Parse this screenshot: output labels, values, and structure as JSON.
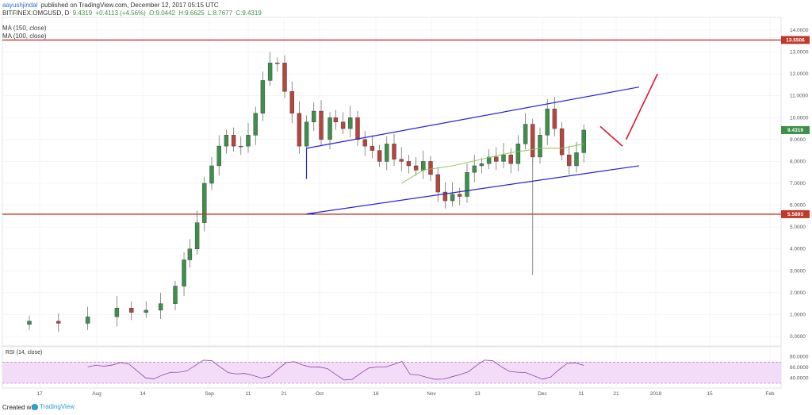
{
  "header": {
    "author": "aayushjindal",
    "published_text": "published on TradingView.com, December 12, 2017 05:15 UTC",
    "symbol": "BITFINEX:OMGUSD, D",
    "last": "9.4319",
    "change": "+0.4113 (+4.56%)",
    "high": "H:9.6625",
    "low": "L:8.7677",
    "close": "C:9.4319",
    "open": "O:9.0442",
    "ma150": "MA (150, close)",
    "ma100": "MA (100, close)"
  },
  "footer": {
    "created_with": "Created with",
    "brand": "TradingView"
  },
  "colors": {
    "up": "#3d8f4a",
    "down": "#b5463e",
    "support": "#c0392b",
    "channel": "#2323d9",
    "arrow": "#e0162b",
    "ma": "#8bc34a",
    "rsi": "#8e44ad",
    "rsi_band": "#f3dcf7"
  },
  "chart_data": {
    "type": "candlestick",
    "y_axis": {
      "min": 0,
      "max": 14,
      "ticks": [
        "0.0000",
        "1.0000",
        "2.0000",
        "3.0000",
        "4.0000",
        "5.0000",
        "6.0000",
        "7.0000",
        "8.0000",
        "9.0000",
        "10.0000",
        "11.0000",
        "12.0000",
        "13.0000",
        "14.0000"
      ]
    },
    "x_axis": {
      "ticks": [
        "17",
        "Aug",
        "14",
        "Sep",
        "11",
        "21",
        "Oct",
        "16",
        "Nov",
        "13",
        "Dec",
        "11",
        "21",
        "2018",
        "15",
        "Feb"
      ]
    },
    "levels": [
      {
        "label": "13.5506",
        "value": 13.5506
      },
      {
        "label": "5.5893",
        "value": 5.5893
      }
    ],
    "last_price_label": "9.4319",
    "last_price": 9.4319,
    "rsi": {
      "label": "RSI (14, close)",
      "ticks": [
        "80.0000",
        "60.0000",
        "40.0000"
      ],
      "upper": 70,
      "lower": 30,
      "range": [
        30,
        90
      ]
    },
    "channel": {
      "upper": [
        [
          15,
          8.6
        ],
        [
          33,
          11.4
        ]
      ],
      "lower": [
        [
          15,
          5.6
        ],
        [
          33,
          7.8
        ]
      ]
    },
    "arrows": [
      {
        "from": [
          [
            30.9,
            9.6
          ],
          [
            32.1,
            8.7
          ]
        ]
      },
      {
        "from": [
          [
            32.3,
            9.0
          ],
          [
            34.0,
            12.0
          ]
        ]
      }
    ]
  }
}
